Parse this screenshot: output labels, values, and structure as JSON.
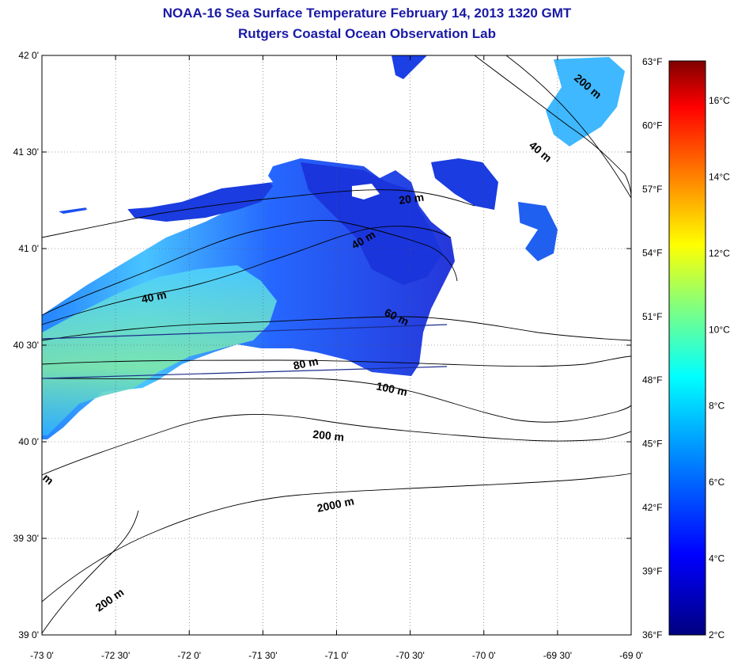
{
  "title": "NOAA-16 Sea Surface Temperature February 14, 2013 1320 GMT",
  "subtitle": "Rutgers Coastal Ocean Observation Lab",
  "lat_labels": [
    "42 0'",
    "41 30'",
    "41 0'",
    "40 30'",
    "40 0'",
    "39 30'",
    "39 0'"
  ],
  "lon_labels": [
    "-73 0'",
    "-72 30'",
    "-72 0'",
    "-71 30'",
    "-71 0'",
    "-70 30'",
    "-70 0'",
    "-69 30'",
    "-69 0'"
  ],
  "fahrenheit_labels": [
    "63°F",
    "60°F",
    "57°F",
    "54°F",
    "51°F",
    "48°F",
    "45°F",
    "42°F",
    "39°F",
    "36°F"
  ],
  "celsius_labels": [
    "16°C",
    "14°C",
    "12°C",
    "10°C",
    "8°C",
    "6°C",
    "4°C",
    "2°C"
  ],
  "contour_labels": [
    "20 m",
    "40 m",
    "40 m",
    "60 m",
    "80 m",
    "100 m",
    "200 m",
    "2000 m",
    "200 m",
    "200 m",
    "40 m",
    "m"
  ],
  "colorbar_colors": [
    "#000080",
    "#0000ff",
    "#0080ff",
    "#00ffff",
    "#80ff80",
    "#ffff00",
    "#ff8000",
    "#ff0000",
    "#800000"
  ],
  "land_color": "#ffffff",
  "grid": true
}
